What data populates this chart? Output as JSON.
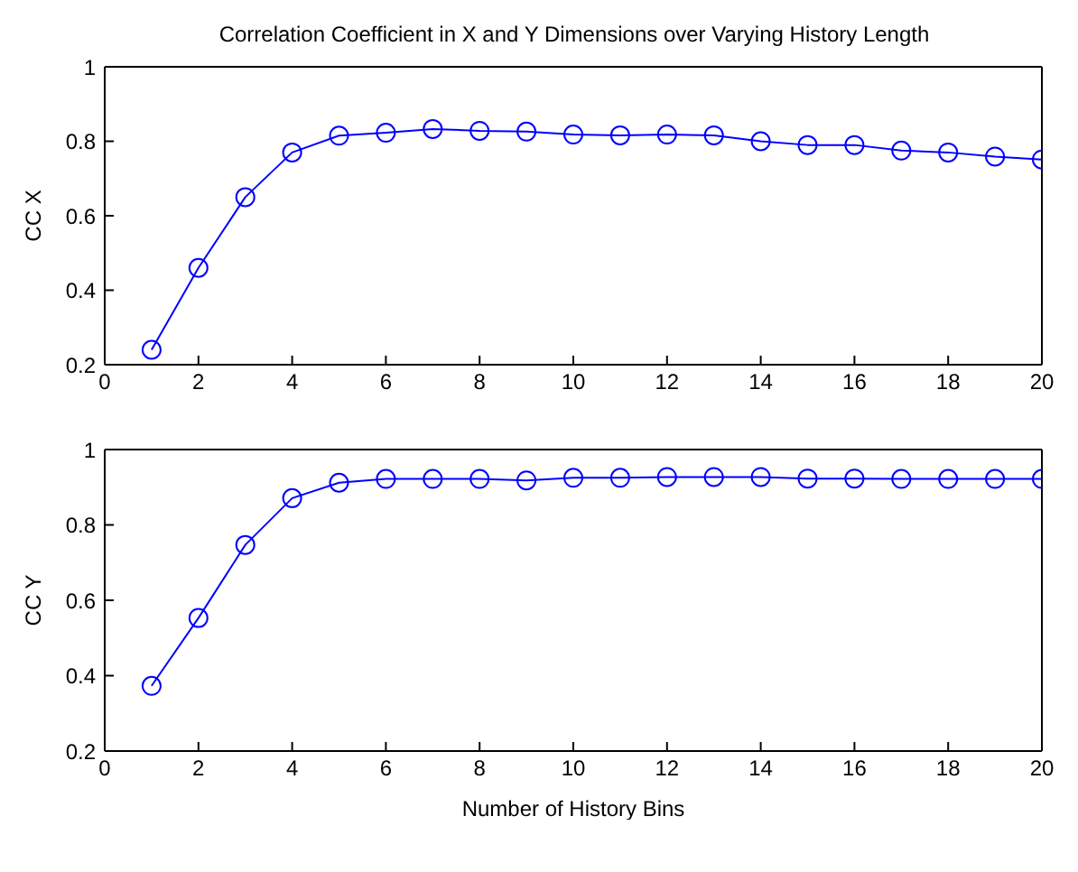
{
  "chart_data": [
    {
      "type": "line",
      "title": "Correlation Coefficient in X and Y Dimensions over Varying History Length",
      "ylabel": "CC X",
      "x": [
        1,
        2,
        3,
        4,
        5,
        6,
        7,
        8,
        9,
        10,
        11,
        12,
        13,
        14,
        15,
        16,
        17,
        18,
        19,
        20
      ],
      "xlim": [
        0,
        20
      ],
      "xticks": [
        0,
        2,
        4,
        6,
        8,
        10,
        12,
        14,
        16,
        18,
        20
      ],
      "ylim": [
        0.2,
        1
      ],
      "yticks": [
        0.2,
        0.4,
        0.6,
        0.8,
        1
      ],
      "marker": "circle",
      "grid": false,
      "legend": false,
      "series": [
        {
          "color": "#0000ff",
          "values": [
            0.24,
            0.46,
            0.65,
            0.77,
            0.815,
            0.823,
            0.833,
            0.828,
            0.826,
            0.818,
            0.816,
            0.818,
            0.816,
            0.8,
            0.79,
            0.79,
            0.775,
            0.77,
            0.759,
            0.751
          ]
        }
      ]
    },
    {
      "type": "line",
      "xlabel": "Number of History Bins",
      "ylabel": "CC Y",
      "x": [
        1,
        2,
        3,
        4,
        5,
        6,
        7,
        8,
        9,
        10,
        11,
        12,
        13,
        14,
        15,
        16,
        17,
        18,
        19,
        20
      ],
      "xlim": [
        0,
        20
      ],
      "xticks": [
        0,
        2,
        4,
        6,
        8,
        10,
        12,
        14,
        16,
        18,
        20
      ],
      "ylim": [
        0.2,
        1
      ],
      "yticks": [
        0.2,
        0.4,
        0.6,
        0.8,
        1
      ],
      "marker": "circle",
      "grid": false,
      "legend": false,
      "series": [
        {
          "color": "#0000ff",
          "values": [
            0.373,
            0.553,
            0.747,
            0.871,
            0.912,
            0.922,
            0.922,
            0.922,
            0.918,
            0.925,
            0.925,
            0.927,
            0.927,
            0.927,
            0.923,
            0.923,
            0.922,
            0.922,
            0.922,
            0.922
          ]
        }
      ]
    }
  ]
}
